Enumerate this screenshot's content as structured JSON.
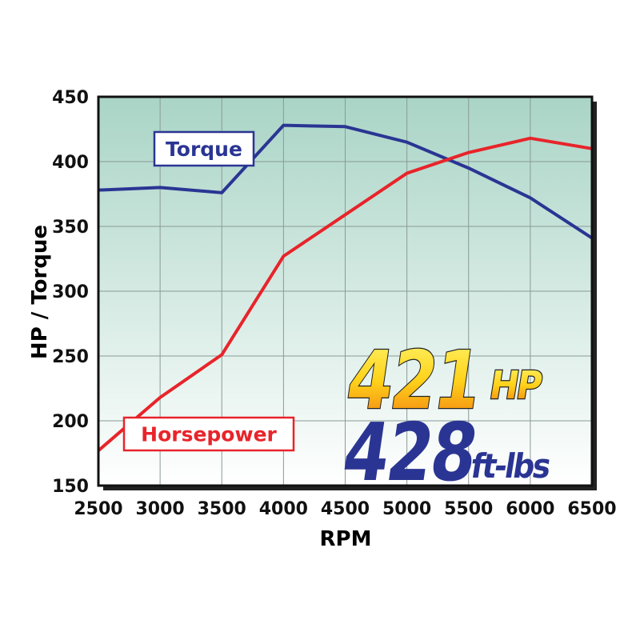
{
  "chart_data": {
    "type": "line",
    "x_label": "RPM",
    "y_label": "HP / Torque",
    "x": [
      2500,
      3000,
      3500,
      4000,
      4500,
      5000,
      5500,
      6000,
      6500
    ],
    "series": [
      {
        "name": "Torque",
        "color": "#2a3593",
        "values": [
          378,
          380,
          376,
          428,
          427,
          415,
          395,
          372,
          341
        ]
      },
      {
        "name": "Horsepower",
        "color": "#e8242a",
        "values": [
          177,
          218,
          251,
          327,
          359,
          391,
          407,
          418,
          410
        ]
      }
    ],
    "annotations": [
      "421",
      "HP",
      "428",
      "ft-lbs"
    ],
    "xlim": [
      2500,
      6500
    ],
    "xticks": [
      2500,
      3000,
      3500,
      4000,
      4500,
      5000,
      5500,
      6000,
      6500
    ],
    "ylim": [
      150,
      450
    ],
    "yticks": [
      150,
      200,
      250,
      300,
      350,
      400,
      450
    ],
    "grid": true
  }
}
